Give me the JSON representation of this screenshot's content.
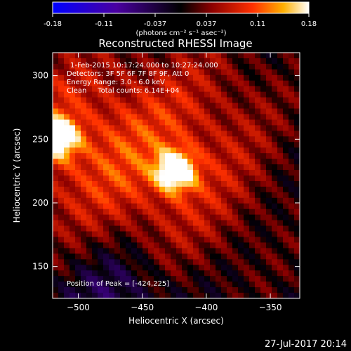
{
  "colorbar": {
    "ticks": [
      "-0.18",
      "-0.11",
      "-0.037",
      "0.037",
      "0.11",
      "0.18"
    ],
    "unit_label": "(photons cm⁻² s⁻¹ asec⁻²)"
  },
  "chart_data": {
    "type": "heatmap",
    "title": "Reconstructed RHESSI Image",
    "xlabel": "Heliocentric X (arcsec)",
    "ylabel": "Heliocentric Y (arcsec)",
    "xlim": [
      -520,
      -327
    ],
    "ylim": [
      125,
      318
    ],
    "xticks": [
      -500,
      -450,
      -400,
      -350
    ],
    "yticks": [
      150,
      200,
      250,
      300
    ],
    "colorbar_range": [
      -0.18,
      0.18
    ],
    "colormap": "hot-with-blue-negatives",
    "sources": [
      {
        "x": -424,
        "y": 225,
        "peak": 0.18,
        "label": "peak"
      },
      {
        "x": -515,
        "y": 251,
        "peak": 0.16
      }
    ],
    "info_lines": [
      "1-Feb-2015 10:17:24.000 to 10:27:24.000",
      "Detectors: 3F 5F 6F 7F 8F 9F, Att 0",
      "Energy Range: 3.0 - 6.0 keV",
      "Clean     Total counts: 6.14E+04"
    ],
    "peak_note": "Position of Peak = [-424,225]"
  },
  "footer": {
    "timestamp": "27-Jul-2017 20:14"
  }
}
